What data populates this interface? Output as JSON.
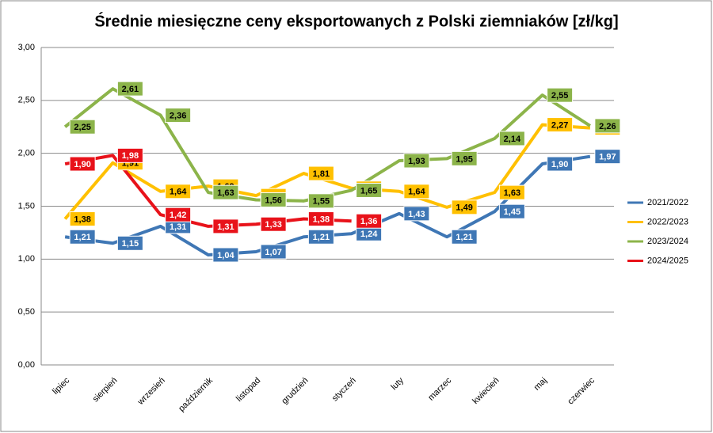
{
  "chart_data": {
    "type": "line",
    "title": "Średnie miesięczne ceny eksportowanych z Polski ziemniaków [zł/kg]",
    "categories": [
      "lipiec",
      "sierpień",
      "wrzesień",
      "październik",
      "listopad",
      "grudzień",
      "styczeń",
      "luty",
      "marzec",
      "kwiecień",
      "maj",
      "czerwiec"
    ],
    "series": [
      {
        "name": "2021/2022",
        "color": "#3f77b5",
        "values": [
          1.21,
          1.15,
          1.31,
          1.04,
          1.07,
          1.21,
          1.24,
          1.43,
          1.21,
          1.45,
          1.9,
          1.97
        ],
        "value_labels": [
          "1,21",
          "1,15",
          "1,31",
          "1,04",
          "1,07",
          "1,21",
          "1,24",
          "1,43",
          "1,21",
          "1,45",
          "1,90",
          "1,97"
        ]
      },
      {
        "name": "2022/2023",
        "color": "#ffc000",
        "values": [
          1.38,
          1.91,
          1.64,
          1.69,
          1.6,
          1.81,
          1.67,
          1.64,
          1.49,
          1.63,
          2.27,
          2.24
        ],
        "value_labels": [
          "1,38",
          "1,91",
          "1,64",
          "1,69",
          "1,60",
          "1,81",
          "1,67",
          "1,64",
          "1,49",
          "1,63",
          "2,27",
          "2,24"
        ]
      },
      {
        "name": "2023/2024",
        "color": "#8cb44a",
        "values": [
          2.25,
          2.61,
          2.36,
          1.63,
          1.56,
          1.55,
          1.65,
          1.93,
          1.95,
          2.14,
          2.55,
          2.26
        ],
        "value_labels": [
          "2,25",
          "2,61",
          "2,36",
          "1,63",
          "1,56",
          "1,55",
          "1,65",
          "1,93",
          "1,95",
          "2,14",
          "2,55",
          "2,26"
        ]
      },
      {
        "name": "2024/2025",
        "color": "#e8121a",
        "values": [
          1.9,
          1.98,
          1.42,
          1.31,
          1.33,
          1.38,
          1.36,
          null,
          null,
          null,
          null,
          null
        ],
        "value_labels": [
          "1,90",
          "1,98",
          "1,42",
          "1,31",
          "1,33",
          "1,38",
          "1,36",
          null,
          null,
          null,
          null,
          null
        ]
      }
    ],
    "ylim": [
      0,
      3
    ],
    "yticks": [
      {
        "value": 0,
        "label": "0,00"
      },
      {
        "value": 0.5,
        "label": "0,50"
      },
      {
        "value": 1,
        "label": "1,00"
      },
      {
        "value": 1.5,
        "label": "1,50"
      },
      {
        "value": 2,
        "label": "2,00"
      },
      {
        "value": 2.5,
        "label": "2,50"
      },
      {
        "value": 3,
        "label": "3,00"
      }
    ],
    "grid": true,
    "legend": "right"
  }
}
